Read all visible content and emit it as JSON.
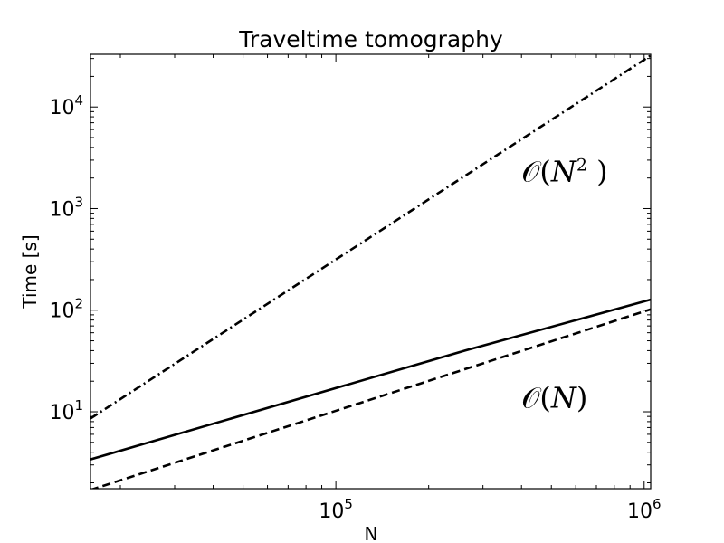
{
  "chart_data": {
    "type": "line",
    "title": "Traveltime tomography",
    "xlabel": "N",
    "ylabel": "Time [s]",
    "xscale": "log",
    "yscale": "log",
    "xlim": [
      16000,
      1050000
    ],
    "ylim": [
      1.75,
      33000
    ],
    "grid": false,
    "x_ticks": [
      {
        "value": 100000,
        "base": "10",
        "exp": "5"
      },
      {
        "value": 1000000,
        "base": "10",
        "exp": "6"
      }
    ],
    "y_ticks": [
      {
        "value": 10,
        "base": "10",
        "exp": "1"
      },
      {
        "value": 100,
        "base": "10",
        "exp": "2"
      },
      {
        "value": 1000,
        "base": "10",
        "exp": "3"
      },
      {
        "value": 10000,
        "base": "10",
        "exp": "4"
      }
    ],
    "series": [
      {
        "style": "solid",
        "color": "#000000",
        "points": [
          [
            16000,
            3.4
          ],
          [
            262144,
            40
          ],
          [
            1048576,
            127
          ]
        ]
      },
      {
        "style": "dashed",
        "color": "#000000",
        "points": [
          [
            16000,
            1.7
          ],
          [
            1048576,
            102
          ]
        ]
      },
      {
        "style": "dashdot",
        "color": "#000000",
        "points": [
          [
            16000,
            8.6
          ],
          [
            1048576,
            32000
          ]
        ]
      }
    ],
    "annotations": [
      {
        "id": "n-squared",
        "text": "O(N² )",
        "at": [
          400000,
          1850
        ]
      },
      {
        "id": "n-linear",
        "text": "O(N)",
        "at": [
          400000,
          11
        ]
      }
    ]
  }
}
